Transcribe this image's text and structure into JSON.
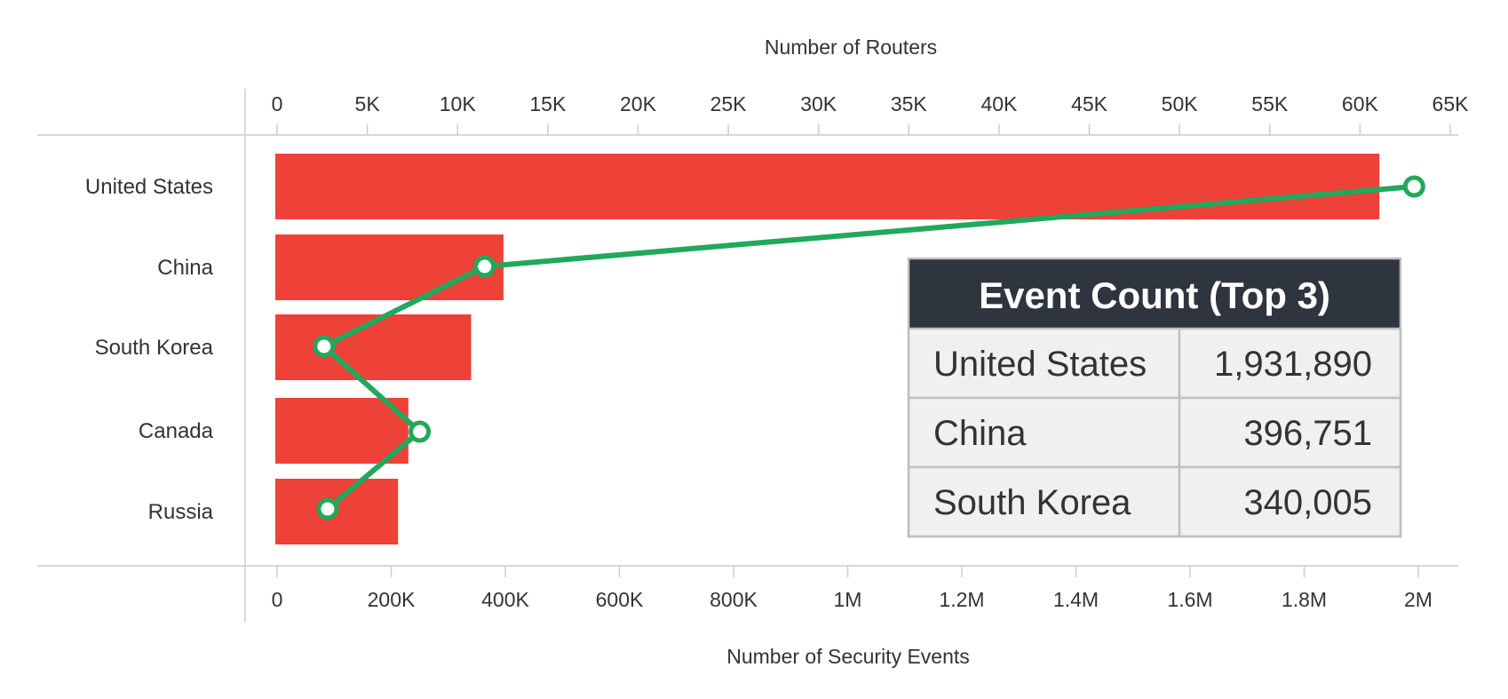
{
  "chart_data": {
    "type": "bar",
    "categories": [
      "United States",
      "China",
      "South Korea",
      "Canada",
      "Russia"
    ],
    "series": [
      {
        "values": [
          1931890,
          396751,
          340005,
          230000,
          212000
        ],
        "axis": "bottom",
        "type": "bar",
        "color": "#ee4137"
      },
      {
        "values": [
          63000,
          11500,
          2600,
          7900,
          2800
        ],
        "axis": "top",
        "type": "line",
        "color": "#21a85c"
      }
    ],
    "xlabel_top": "Number of Routers",
    "xlabel_bottom": "Number of Security Events",
    "top_axis": {
      "range": [
        0,
        65000
      ],
      "ticks": [
        "0",
        "5K",
        "10K",
        "15K",
        "20K",
        "25K",
        "30K",
        "35K",
        "40K",
        "45K",
        "50K",
        "55K",
        "60K",
        "65K"
      ]
    },
    "bottom_axis": {
      "range": [
        0,
        2000000
      ],
      "ticks": [
        "0",
        "200K",
        "400K",
        "600K",
        "800K",
        "1M",
        "1.2M",
        "1.4M",
        "1.6M",
        "1.8M",
        "2M"
      ]
    },
    "grid": false,
    "table": {
      "title": "Event Count (Top 3)",
      "rows": [
        {
          "country": "United States",
          "count": "1,931,890"
        },
        {
          "country": "China",
          "count": "396,751"
        },
        {
          "country": "South Korea",
          "count": "340,005"
        }
      ]
    }
  },
  "colors": {
    "bar": "#ee4137",
    "line": "#21a85c",
    "table_header": "#2e353e",
    "table_cell": "#f0f0f0",
    "table_border": "#c0c0c0",
    "axis": "#cccccc"
  }
}
